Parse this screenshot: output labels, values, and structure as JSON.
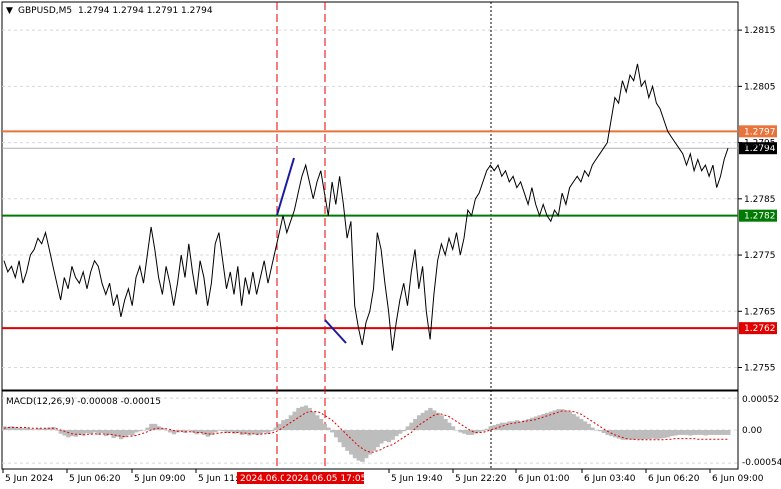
{
  "header": {
    "arrow_glyph": "▼",
    "symbol": "GBPUSD,M5",
    "ohlc": "1.2794 1.2794 1.2791 1.2794"
  },
  "macd": {
    "label": "MACD(12,26,9) -0.00008 -0.00015",
    "y_ticks": [
      "0.00052",
      "0.00",
      "-0.00054"
    ]
  },
  "chart_data": {
    "type": "line",
    "price_ylim": [
      1.2751,
      1.282
    ],
    "price_y_ticks": [
      "1.2815",
      "1.2805",
      "1.2795",
      "1.2785",
      "1.2775",
      "1.2765",
      "1.2755"
    ],
    "price_y_tick_values": [
      1.2815,
      1.2805,
      1.2795,
      1.2785,
      1.2775,
      1.2765,
      1.2755
    ],
    "x_tick_labels": [
      "5 Jun 2024",
      "5 Jun 06:20",
      "5 Jun 09:00",
      "5 Jun 11:40",
      "5 Jun 19:40",
      "5 Jun 22:20",
      "6 Jun 01:00",
      "6 Jun 03:40",
      "6 Jun 06:20",
      "6 Jun 09:00"
    ],
    "highlighted_x_labels": [
      "2024.06.05",
      "2024.06.05 17:05"
    ],
    "current_price": 1.2794,
    "current_price_label": "1.2794",
    "levels": [
      {
        "value": 1.2797,
        "label": "1.2797",
        "color": "#e8743b"
      },
      {
        "value": 1.2782,
        "label": "1.2782",
        "color": "#007a00"
      },
      {
        "value": 1.2762,
        "label": "1.2762",
        "color": "#e00000"
      }
    ],
    "grid_labels_faint": [
      "1.2795"
    ],
    "price_series": [
      1.2774,
      1.2772,
      1.2773,
      1.2771,
      1.2774,
      1.277,
      1.2772,
      1.2775,
      1.2776,
      1.2778,
      1.2777,
      1.2779,
      1.2776,
      1.2773,
      1.277,
      1.2767,
      1.2771,
      1.2769,
      1.2773,
      1.2771,
      1.277,
      1.2772,
      1.2769,
      1.2772,
      1.2774,
      1.2773,
      1.277,
      1.2768,
      1.277,
      1.2766,
      1.2768,
      1.2764,
      1.2767,
      1.2769,
      1.2766,
      1.2771,
      1.2773,
      1.277,
      1.2775,
      1.278,
      1.2776,
      1.2771,
      1.2768,
      1.2773,
      1.277,
      1.2766,
      1.277,
      1.2775,
      1.2771,
      1.2777,
      1.2772,
      1.2768,
      1.2774,
      1.2771,
      1.2766,
      1.277,
      1.2777,
      1.2779,
      1.2774,
      1.2769,
      1.2772,
      1.2768,
      1.2773,
      1.2766,
      1.2771,
      1.2768,
      1.2772,
      1.2768,
      1.2771,
      1.2774,
      1.277,
      1.2773,
      1.2776,
      1.2779,
      1.2782,
      1.2779,
      1.2781,
      1.2783,
      1.2786,
      1.2789,
      1.2791,
      1.2788,
      1.2785,
      1.2788,
      1.279,
      1.2786,
      1.2782,
      1.2788,
      1.2784,
      1.2789,
      1.2784,
      1.2778,
      1.2781,
      1.2766,
      1.2762,
      1.2759,
      1.2763,
      1.2765,
      1.2769,
      1.2779,
      1.2776,
      1.277,
      1.2765,
      1.2758,
      1.2763,
      1.2767,
      1.277,
      1.2766,
      1.2772,
      1.2776,
      1.2769,
      1.2773,
      1.2765,
      1.276,
      1.2768,
      1.2774,
      1.2777,
      1.2775,
      1.2778,
      1.2776,
      1.2779,
      1.2775,
      1.2778,
      1.2783,
      1.2782,
      1.2785,
      1.2786,
      1.2788,
      1.279,
      1.2791,
      1.279,
      1.2791,
      1.2789,
      1.279,
      1.2788,
      1.2789,
      1.2787,
      1.2788,
      1.2786,
      1.2784,
      1.2787,
      1.2784,
      1.2782,
      1.2784,
      1.2782,
      1.2781,
      1.2783,
      1.2782,
      1.2786,
      1.2784,
      1.2787,
      1.2788,
      1.2789,
      1.2788,
      1.279,
      1.2789,
      1.2791,
      1.2792,
      1.2793,
      1.2794,
      1.2795,
      1.2799,
      1.2803,
      1.2802,
      1.2806,
      1.2804,
      1.2807,
      1.2806,
      1.2809,
      1.2805,
      1.2806,
      1.2803,
      1.2805,
      1.2802,
      1.2801,
      1.2799,
      1.2797,
      1.2796,
      1.2795,
      1.2794,
      1.2793,
      1.2791,
      1.2793,
      1.279,
      1.2792,
      1.279,
      1.2791,
      1.2789,
      1.2791,
      1.2787,
      1.2789,
      1.2792,
      1.2794
    ],
    "macd_ylim": [
      -0.00062,
      0.00062
    ],
    "macd_histogram": [
      6e-05,
      5e-05,
      6e-05,
      5e-05,
      4e-05,
      3e-05,
      4e-05,
      2e-05,
      1e-05,
      3e-05,
      2e-05,
      3e-05,
      4e-05,
      5e-05,
      -1e-05,
      -6e-05,
      -9e-05,
      -0.00012,
      -0.0001,
      -0.00011,
      -8e-05,
      -9e-05,
      -5e-05,
      -7e-05,
      -4e-05,
      -8e-05,
      -5e-05,
      -0.0001,
      -8e-05,
      -0.00013,
      -0.00011,
      -0.00015,
      -0.00012,
      -8e-05,
      -9e-05,
      -4e-05,
      -2e-05,
      0.0,
      4e-05,
      0.0001,
      0.0001,
      6e-05,
      3e-05,
      0.0,
      -4e-05,
      -7e-05,
      -4e-05,
      -2e-05,
      -5e-05,
      -1e-05,
      -4e-05,
      -7e-05,
      -5e-05,
      -8e-05,
      -0.00011,
      -8e-05,
      -4e-05,
      0.0,
      -2e-05,
      -5e-05,
      -3e-05,
      -6e-05,
      -4e-05,
      -8e-05,
      -7e-05,
      -9e-05,
      -6e-05,
      -8e-05,
      -7e-05,
      -4e-05,
      -6e-05,
      -2e-05,
      4e-05,
      0.0001,
      0.00016,
      0.00018,
      0.00024,
      0.0003,
      0.00036,
      0.00038,
      0.0004,
      0.00036,
      0.0003,
      0.00024,
      0.00018,
      0.0001,
      4e-05,
      -4e-05,
      -0.00012,
      -0.0002,
      -0.00028,
      -0.00034,
      -0.0004,
      -0.00046,
      -0.0005,
      -0.00052,
      -0.00046,
      -0.0004,
      -0.00034,
      -0.00028,
      -0.00022,
      -0.00018,
      -0.0002,
      -0.00016,
      -0.0001,
      -6e-05,
      -2e-05,
      6e-05,
      0.00012,
      0.00018,
      0.00024,
      0.00028,
      0.00032,
      0.00036,
      0.00032,
      0.00028,
      0.00024,
      0.00018,
      0.00012,
      6e-05,
      0.0,
      -4e-05,
      -6e-05,
      -8e-05,
      -8e-05,
      -6e-05,
      -4e-05,
      -2e-05,
      2e-05,
      6e-05,
      8e-05,
      0.0001,
      0.00012,
      0.00012,
      0.00014,
      0.00014,
      0.00016,
      0.00014,
      0.00016,
      0.00018,
      0.0002,
      0.00022,
      0.00024,
      0.00026,
      0.00028,
      0.0003,
      0.00032,
      0.00034,
      0.00034,
      0.00032,
      0.0003,
      0.00026,
      0.00022,
      0.00018,
      0.00014,
      0.0001,
      4e-05,
      0.0,
      -2e-05,
      -5e-05,
      -8e-05,
      -0.0001,
      -0.00012,
      -0.00014,
      -0.00016,
      -0.00016,
      -0.00015,
      -0.00016,
      -0.00015,
      -0.00016,
      -0.00015,
      -0.00015,
      -0.00014,
      -0.00015,
      -0.00014,
      -0.00013,
      -0.00012,
      -0.0001,
      -9e-05,
      -8e-05,
      -8e-05,
      -8e-05,
      -9e-05,
      -8e-05,
      -8e-05,
      -8e-05,
      -9e-05,
      -8e-05,
      -8e-05,
      -8e-05,
      -8e-05,
      -8e-05,
      -8e-05
    ],
    "macd_signal": [
      3e-05,
      4e-05,
      4e-05,
      4e-05,
      4e-05,
      4e-05,
      4e-05,
      3e-05,
      3e-05,
      3e-05,
      3e-05,
      3e-05,
      3e-05,
      3e-05,
      2e-05,
      0.0,
      -2e-05,
      -4e-05,
      -6e-05,
      -7e-05,
      -7e-05,
      -8e-05,
      -7e-05,
      -7e-05,
      -6e-05,
      -7e-05,
      -6e-05,
      -7e-05,
      -7e-05,
      -8e-05,
      -9e-05,
      -0.0001,
      -0.00011,
      -0.0001,
      -0.0001,
      -9e-05,
      -7e-05,
      -5e-05,
      -3e-05,
      0.0,
      2e-05,
      3e-05,
      3e-05,
      2e-05,
      1e-05,
      -1e-05,
      -2e-05,
      -2e-05,
      -3e-05,
      -3e-05,
      -3e-05,
      -4e-05,
      -4e-05,
      -5e-05,
      -6e-05,
      -7e-05,
      -6e-05,
      -5e-05,
      -4e-05,
      -4e-05,
      -4e-05,
      -4e-05,
      -4e-05,
      -5e-05,
      -5e-05,
      -6e-05,
      -6e-05,
      -7e-05,
      -7e-05,
      -6e-05,
      -6e-05,
      -5e-05,
      -3e-05,
      0.0,
      4e-05,
      8e-05,
      0.00012,
      0.00016,
      0.0002,
      0.00024,
      0.00028,
      0.0003,
      0.0003,
      0.0003,
      0.00028,
      0.00024,
      0.0002,
      0.00016,
      0.0001,
      4e-05,
      -2e-05,
      -8e-05,
      -0.00014,
      -0.0002,
      -0.00026,
      -0.0003,
      -0.00034,
      -0.00036,
      -0.00036,
      -0.00034,
      -0.00032,
      -0.00028,
      -0.00026,
      -0.00024,
      -0.0002,
      -0.00016,
      -0.00012,
      -8e-05,
      -4e-05,
      2e-05,
      8e-05,
      0.00012,
      0.00016,
      0.0002,
      0.00024,
      0.00026,
      0.00026,
      0.00024,
      0.00022,
      0.00018,
      0.00014,
      0.0001,
      6e-05,
      2e-05,
      -2e-05,
      -4e-05,
      -4e-05,
      -4e-05,
      -2e-05,
      0.0,
      2e-05,
      4e-05,
      6e-05,
      8e-05,
      0.0001,
      0.00011,
      0.00012,
      0.00013,
      0.00014,
      0.00015,
      0.00016,
      0.00017,
      0.00019,
      0.00021,
      0.00023,
      0.00025,
      0.00027,
      0.00029,
      0.00031,
      0.00031,
      0.00031,
      0.0003,
      0.00028,
      0.00026,
      0.00022,
      0.00018,
      0.00014,
      0.0001,
      6e-05,
      2e-05,
      -2e-05,
      -5e-05,
      -8e-05,
      -0.0001,
      -0.00012,
      -0.00014,
      -0.00015,
      -0.00015,
      -0.00016,
      -0.00016,
      -0.00016,
      -0.00016,
      -0.00016,
      -0.00016,
      -0.00016,
      -0.00016,
      -0.00015,
      -0.00015,
      -0.00014,
      -0.00014,
      -0.00014,
      -0.00014,
      -0.00014,
      -0.00014,
      -0.00015,
      -0.00015,
      -0.00015,
      -0.00015,
      -0.00015,
      -0.00015,
      -0.00015,
      -0.00015,
      -0.00015
    ],
    "colors": {
      "price_line": "#000000",
      "signal_line": "#e00000",
      "histogram": "#bdbdbd",
      "marker_line": "#e00000",
      "wave_line": "#1a1aa0",
      "dotted_line": "#000000"
    }
  }
}
